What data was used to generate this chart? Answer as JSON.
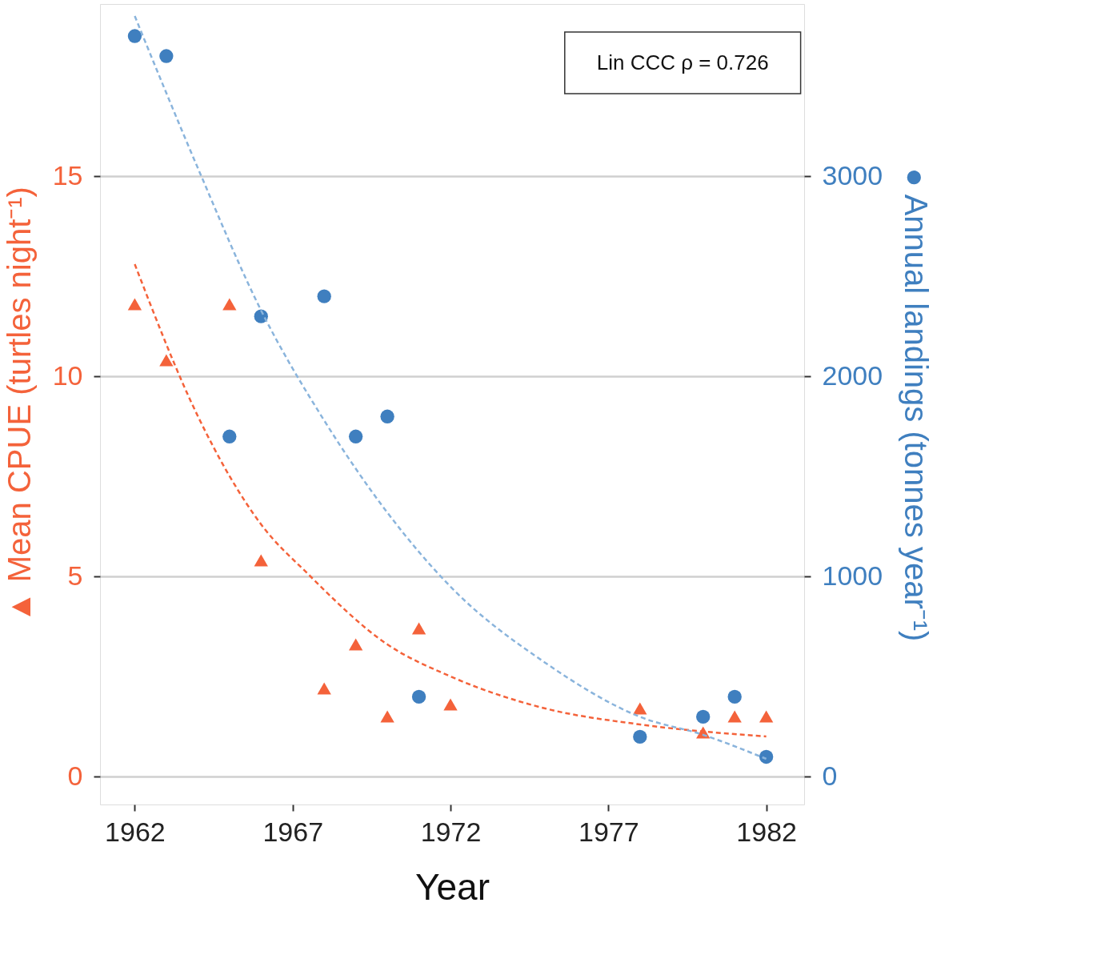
{
  "chart_data": {
    "type": "scatter",
    "xlabel": "Year",
    "ylabel": "▲ Mean CPUE (turtles night⁻¹)",
    "y2label": "● Annual landings (tonnes year⁻¹)",
    "x": [
      1962,
      1963,
      1965,
      1966,
      1968,
      1969,
      1970,
      1971,
      1972,
      1978,
      1980,
      1981,
      1982
    ],
    "series": [
      {
        "marker": "triangle",
        "color": "#f4623a",
        "values": [
          11.8,
          10.4,
          11.8,
          5.4,
          2.2,
          3.3,
          1.5,
          3.7,
          1.8,
          1.7,
          1.1,
          1.5,
          1.5
        ]
      },
      {
        "type": "line",
        "marker": "none",
        "line_style": "dashed",
        "color": "#f4623a",
        "x": [
          1962,
          1964,
          1966,
          1967.5,
          1970,
          1972,
          1975,
          1978,
          1982
        ],
        "values": [
          12.8,
          9.0,
          6.3,
          5.05,
          3.3,
          2.5,
          1.7,
          1.3,
          1.0
        ]
      },
      {
        "marker": "circle",
        "axis": "y2",
        "color": "#3f7fbf",
        "x": [
          1962,
          1963,
          1965,
          1966,
          1968,
          1969,
          1970,
          1971,
          1978,
          1980,
          1981,
          1982
        ],
        "values": [
          3700,
          3600,
          1700,
          2300,
          2400,
          1700,
          1800,
          400,
          200,
          300,
          400,
          100
        ]
      },
      {
        "type": "line",
        "marker": "none",
        "line_style": "dashed",
        "axis": "y2",
        "color": "#8ab4dc",
        "x": [
          1962,
          1964,
          1966,
          1968,
          1970,
          1972,
          1975,
          1978,
          1980,
          1982
        ],
        "values": [
          3800,
          3040,
          2330,
          1780,
          1320,
          950,
          570,
          300,
          210,
          90
        ]
      }
    ],
    "xlim": [
      1960.9,
      1983.2
    ],
    "xticks": [
      1962,
      1967,
      1972,
      1977,
      1982
    ],
    "ylim": [
      -0.7,
      19.3
    ],
    "yticks": [
      0,
      5,
      10,
      15
    ],
    "y2lim": [
      -138,
      3860
    ],
    "y2ticks": [
      0,
      1000,
      2000,
      3000
    ],
    "grid": "y",
    "annotations": [
      "Lin CCC ρ = 0.726"
    ]
  }
}
